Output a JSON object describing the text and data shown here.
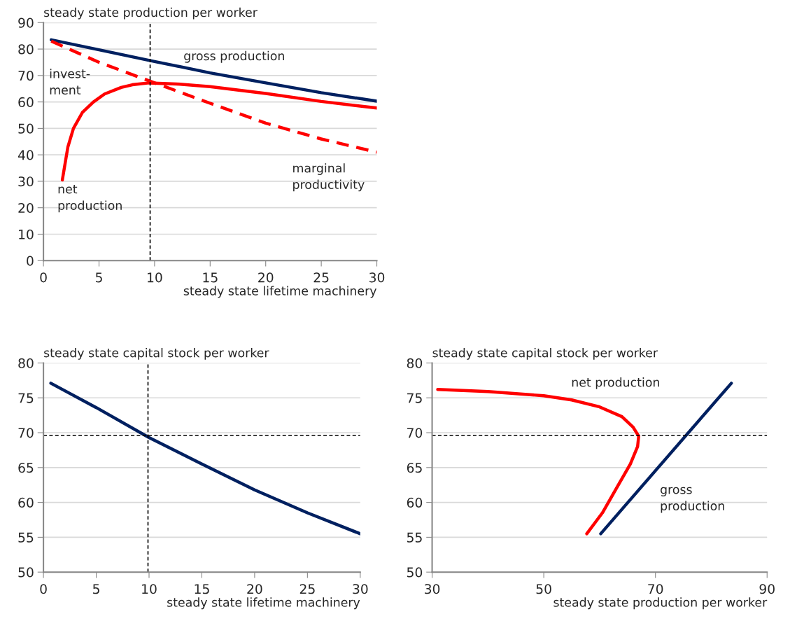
{
  "chart_data": [
    {
      "type": "line",
      "title": "steady state production per worker",
      "xlabel": "steady state lifetime machinery",
      "xlim": [
        0,
        30
      ],
      "xticks": [
        0,
        5,
        10,
        15,
        20,
        25,
        30
      ],
      "ylim": [
        0,
        90
      ],
      "yticks": [
        0,
        10,
        20,
        30,
        40,
        50,
        60,
        70,
        80,
        90
      ],
      "grid": "y",
      "legend": false,
      "series": [
        {
          "name": "gross production",
          "color": "#002060",
          "x": [
            0.7,
            5,
            10,
            15,
            20,
            25,
            30
          ],
          "values": [
            83.5,
            79.7,
            75.3,
            71,
            67.2,
            63.5,
            60.3
          ]
        },
        {
          "name": "marginal\nproductivity",
          "color": "#ff0000",
          "line_style": "dashed",
          "x": [
            0.7,
            5,
            9.5,
            15,
            20,
            25,
            30
          ],
          "values": [
            83,
            75,
            68,
            59.5,
            52,
            46,
            41
          ]
        },
        {
          "name": "net\nproduction",
          "color": "#ff0000",
          "x": [
            1.7,
            2,
            2.2,
            2.7,
            3.5,
            4.5,
            5.5,
            7,
            8,
            9.5,
            12,
            15,
            20,
            25,
            30
          ],
          "values": [
            30.5,
            38,
            43,
            50,
            56,
            60,
            63,
            65.5,
            66.5,
            67.2,
            66.8,
            65.8,
            63.2,
            60.2,
            57.7
          ]
        }
      ],
      "ref_lines": [
        {
          "axis": "x",
          "value": 9.6,
          "line_style": "dashed",
          "color": "#000000"
        }
      ],
      "annotations": [
        "invest-\nment"
      ]
    },
    {
      "type": "line",
      "title": "steady state capital stock per worker",
      "xlabel": "steady state lifetime machinery",
      "xlim": [
        0,
        30
      ],
      "xticks": [
        0,
        5,
        10,
        15,
        20,
        25,
        30
      ],
      "ylim": [
        50,
        80
      ],
      "yticks": [
        50,
        55,
        60,
        65,
        70,
        75,
        80
      ],
      "grid": "y",
      "legend": false,
      "series": [
        {
          "color": "#002060",
          "x": [
            0.7,
            5,
            10,
            15,
            20,
            25,
            30
          ],
          "values": [
            77.1,
            73.6,
            69.3,
            65.5,
            61.8,
            58.5,
            55.5
          ]
        }
      ],
      "ref_lines": [
        {
          "axis": "x",
          "value": 9.9,
          "line_style": "dashed",
          "color": "#000000"
        },
        {
          "axis": "y",
          "value": 69.6,
          "line_style": "dashed",
          "color": "#000000"
        }
      ]
    },
    {
      "type": "line",
      "title": "steady state capital stock per worker",
      "xlabel": "steady state production per worker",
      "xlim": [
        30,
        90
      ],
      "xticks": [
        30,
        50,
        70,
        90
      ],
      "ylim": [
        50,
        80
      ],
      "yticks": [
        50,
        55,
        60,
        65,
        70,
        75,
        80
      ],
      "grid": "y",
      "legend": false,
      "series": [
        {
          "name": "net production",
          "color": "#ff0000",
          "x": [
            31,
            40,
            50,
            55,
            60,
            64,
            66,
            67,
            66.8,
            65.5,
            63,
            60.5,
            57.7
          ],
          "values": [
            76.2,
            75.9,
            75.3,
            74.7,
            73.7,
            72.3,
            70.8,
            69.5,
            68,
            65.5,
            62,
            58.5,
            55.5
          ]
        },
        {
          "name": "gross\nproduction",
          "color": "#002060",
          "x": [
            60.2,
            83.6
          ],
          "values": [
            55.5,
            77.1
          ]
        }
      ],
      "ref_lines": [
        {
          "axis": "y",
          "value": 69.6,
          "line_style": "dashed",
          "color": "#000000"
        }
      ]
    }
  ]
}
